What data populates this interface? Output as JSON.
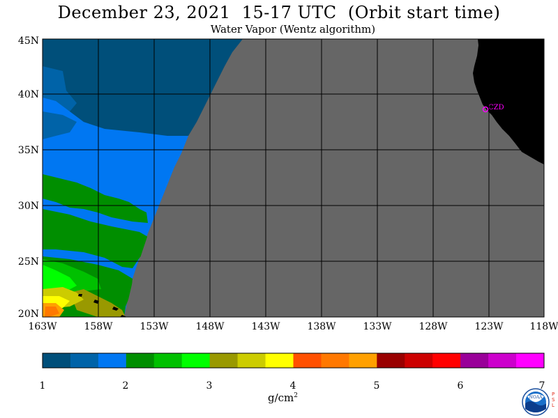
{
  "header": {
    "title": "December 23, 2021  15-17 UTC  (Orbit start time)",
    "subtitle": "Water Vapor (Wentz algorithm)"
  },
  "map": {
    "lat_labels": [
      "45N",
      "40N",
      "35N",
      "30N",
      "25N",
      "20N"
    ],
    "lon_labels": [
      "163W",
      "158W",
      "153W",
      "148W",
      "143W",
      "138W",
      "133W",
      "128W",
      "123W",
      "118W"
    ],
    "station_label": "CZD",
    "colors": {
      "no_data_gray": "#666666",
      "land_black": "#000000",
      "station_magenta": "#ff00ff"
    }
  },
  "colorbar": {
    "tick_labels": [
      "1",
      "2",
      "3",
      "4",
      "5",
      "6",
      "7"
    ],
    "unit": "g/cm",
    "unit_sup": "2",
    "colors": [
      "#004f7a",
      "#0063a8",
      "#0077f2",
      "#008e00",
      "#00c000",
      "#00ff00",
      "#999900",
      "#cccc00",
      "#ffff00",
      "#ff5000",
      "#ff7800",
      "#ffa000",
      "#990000",
      "#cc0000",
      "#ff0000",
      "#990099",
      "#cc00cc",
      "#ff00ff"
    ]
  },
  "logo": {
    "noaa_text": "NOAA",
    "psl_letters": [
      "P",
      "S",
      "L"
    ]
  }
}
